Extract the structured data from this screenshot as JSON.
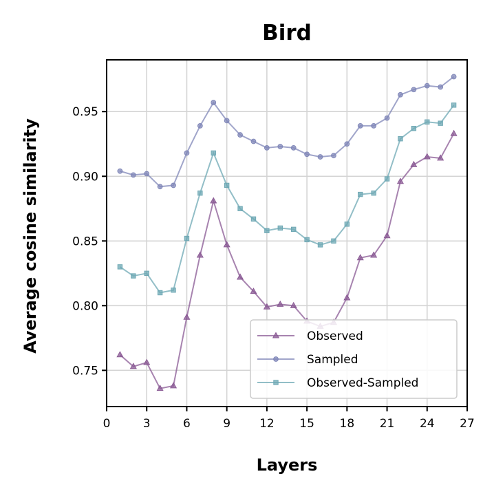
{
  "chart_data": {
    "type": "line",
    "title": "Bird",
    "xlabel": "Layers",
    "ylabel": "Average cosine similarity",
    "xlim": [
      0,
      27
    ],
    "ylim": [
      0.722,
      0.99
    ],
    "xticks": [
      "0",
      "3",
      "6",
      "9",
      "12",
      "15",
      "18",
      "21",
      "24",
      "27"
    ],
    "yticks": [
      "0.75",
      "0.80",
      "0.85",
      "0.90",
      "0.95"
    ],
    "grid": true,
    "legend_position": "bottom-right",
    "x": [
      1,
      2,
      3,
      4,
      5,
      6,
      7,
      8,
      9,
      10,
      11,
      12,
      13,
      14,
      15,
      16,
      17,
      18,
      19,
      20,
      21,
      22,
      23,
      24,
      25,
      26
    ],
    "series": [
      {
        "name": "Observed",
        "color": "#8a5a94",
        "marker": "triangle",
        "values": [
          0.762,
          0.753,
          0.756,
          0.736,
          0.738,
          0.791,
          0.839,
          0.881,
          0.847,
          0.822,
          0.811,
          0.799,
          0.801,
          0.8,
          0.788,
          0.784,
          0.787,
          0.806,
          0.837,
          0.839,
          0.854,
          0.896,
          0.909,
          0.915,
          0.914,
          0.933
        ]
      },
      {
        "name": "Sampled",
        "color": "#8087b8",
        "marker": "circle",
        "values": [
          0.904,
          0.901,
          0.902,
          0.892,
          0.893,
          0.918,
          0.939,
          0.957,
          0.943,
          0.932,
          0.927,
          0.922,
          0.923,
          0.922,
          0.917,
          0.915,
          0.916,
          0.925,
          0.939,
          0.939,
          0.945,
          0.963,
          0.967,
          0.97,
          0.969,
          0.977
        ]
      },
      {
        "name": "Observed-Sampled",
        "color": "#6ea8b4",
        "marker": "square",
        "values": [
          0.83,
          0.823,
          0.825,
          0.81,
          0.812,
          0.852,
          0.887,
          0.918,
          0.893,
          0.875,
          0.867,
          0.858,
          0.86,
          0.859,
          0.851,
          0.847,
          0.85,
          0.863,
          0.886,
          0.887,
          0.898,
          0.929,
          0.937,
          0.942,
          0.941,
          0.955
        ]
      }
    ]
  }
}
